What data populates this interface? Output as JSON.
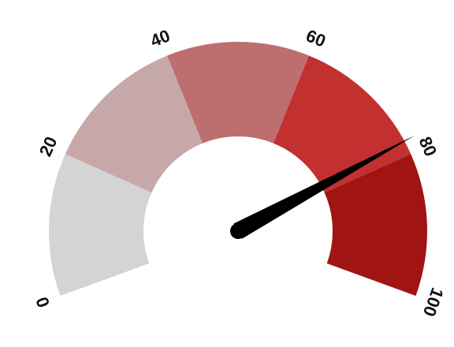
{
  "chart_data": {
    "type": "gauge",
    "min": 0,
    "max": 100,
    "value": 78,
    "ticks": [
      "0",
      "20",
      "40",
      "60",
      "80",
      "100"
    ],
    "tick_values": [
      0,
      20,
      40,
      60,
      80,
      100
    ],
    "bands": [
      {
        "from": 0,
        "to": 20,
        "color": "#d4d4d4"
      },
      {
        "from": 20,
        "to": 40,
        "color": "#c7a8a9"
      },
      {
        "from": 40,
        "to": 60,
        "color": "#bd6e6f"
      },
      {
        "from": 60,
        "to": 80,
        "color": "#c33030"
      },
      {
        "from": 80,
        "to": 100,
        "color": "#a11414"
      }
    ],
    "needle_color": "#000000"
  }
}
